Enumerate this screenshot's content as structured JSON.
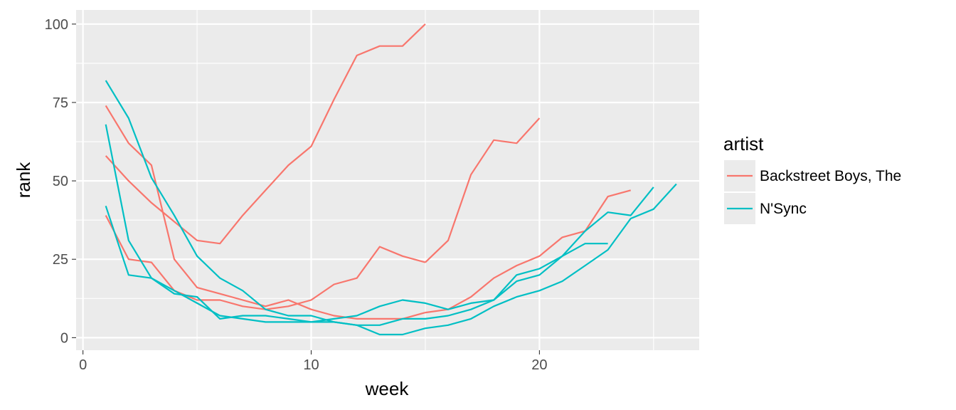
{
  "chart_data": {
    "type": "line",
    "xlabel": "week",
    "ylabel": "rank",
    "xlim": [
      -0.3,
      27
    ],
    "ylim": [
      -4,
      104.5
    ],
    "x_ticks": [
      0,
      10,
      20
    ],
    "y_ticks": [
      0,
      25,
      50,
      75,
      100
    ],
    "x_tick_labels": [
      "0",
      "10",
      "20"
    ],
    "y_tick_labels": [
      "0",
      "25",
      "50",
      "75",
      "100"
    ],
    "grid": true,
    "legend": {
      "title": "artist",
      "position": "right"
    },
    "artists": [
      {
        "name": "Backstreet Boys, The",
        "color": "#F8766D"
      },
      {
        "name": "N'Sync",
        "color": "#00BFC4"
      }
    ],
    "series": [
      {
        "artist": "Backstreet Boys, The",
        "x": [
          1,
          2,
          3,
          4,
          5,
          6,
          7,
          8,
          9,
          10,
          11,
          12,
          13,
          14,
          15
        ],
        "y": [
          39,
          25,
          24,
          15,
          12,
          12,
          10,
          9,
          10,
          12,
          17,
          19,
          29,
          26,
          24
        ]
      },
      {
        "artist": "Backstreet Boys, The",
        "x": [
          1,
          2,
          3,
          4,
          5,
          6,
          7,
          8,
          9,
          10,
          11,
          12,
          13,
          14,
          15
        ],
        "y": [
          74,
          62,
          55,
          25,
          16,
          14,
          12,
          10,
          12,
          9,
          7,
          6,
          6,
          6,
          8
        ]
      },
      {
        "artist": "Backstreet Boys, The",
        "x": [
          1,
          2,
          3,
          4,
          5,
          6,
          7,
          8,
          9,
          10,
          11,
          12,
          13,
          14,
          15
        ],
        "y": [
          58,
          50,
          43,
          37,
          31,
          30,
          39,
          47,
          55,
          61,
          76,
          90,
          93,
          93,
          100
        ]
      },
      {
        "artist": "Backstreet Boys, The",
        "x": [
          15,
          16,
          17,
          18,
          19,
          20
        ],
        "y": [
          24,
          31,
          52,
          63,
          62,
          70
        ]
      },
      {
        "artist": "Backstreet Boys, The",
        "x": [
          15,
          16,
          17,
          18,
          19,
          20,
          21,
          22,
          23,
          24
        ],
        "y": [
          8,
          9,
          13,
          19,
          23,
          26,
          32,
          34,
          45,
          47
        ]
      },
      {
        "artist": "N'Sync",
        "x": [
          1,
          2,
          3,
          4,
          5,
          6,
          7,
          8,
          9,
          10,
          11,
          12,
          13,
          14,
          15,
          16,
          17,
          18,
          19,
          20,
          21,
          22,
          23
        ],
        "y": [
          82,
          70,
          51,
          39,
          26,
          19,
          15,
          9,
          7,
          7,
          5,
          4,
          4,
          6,
          6,
          7,
          9,
          12,
          18,
          20,
          26,
          30,
          30
        ]
      },
      {
        "artist": "N'Sync",
        "x": [
          1,
          2,
          3,
          4,
          5,
          6,
          7,
          8,
          9,
          10,
          11,
          12,
          13,
          14,
          15,
          16,
          17,
          18,
          19,
          20,
          21,
          22,
          23,
          24,
          25
        ],
        "y": [
          68,
          31,
          19,
          14,
          13,
          6,
          7,
          7,
          6,
          5,
          6,
          7,
          10,
          12,
          11,
          9,
          11,
          12,
          20,
          22,
          26,
          34,
          40,
          39,
          48
        ]
      },
      {
        "artist": "N'Sync",
        "x": [
          1,
          2,
          3,
          4,
          5,
          6,
          7,
          8,
          9,
          10,
          11,
          12,
          13,
          14,
          15,
          16,
          17,
          18,
          19,
          20,
          21,
          22,
          23,
          24,
          25,
          26
        ],
        "y": [
          42,
          20,
          19,
          15,
          11,
          7,
          6,
          5,
          5,
          5,
          5,
          4,
          1,
          1,
          3,
          4,
          6,
          10,
          13,
          15,
          18,
          23,
          28,
          38,
          41,
          49
        ]
      }
    ]
  }
}
